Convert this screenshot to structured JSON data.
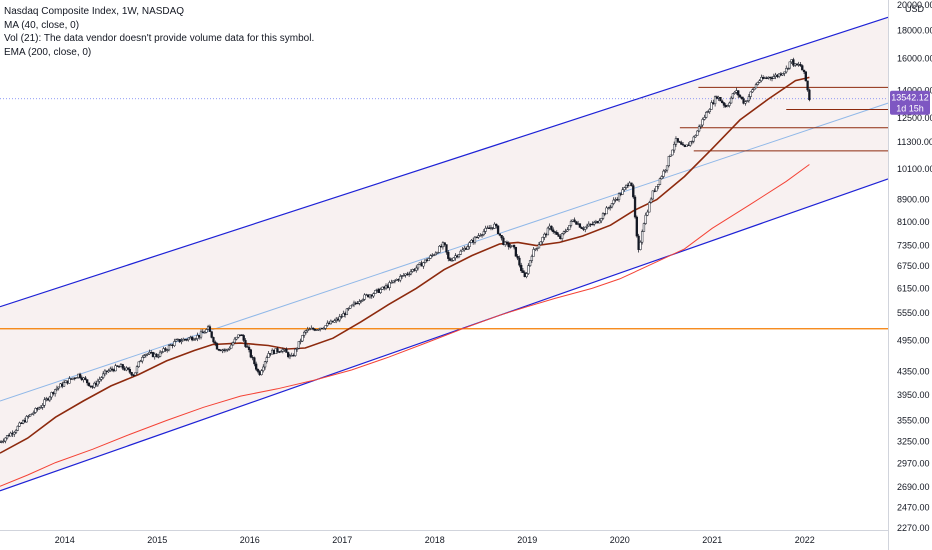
{
  "header": {
    "title": "Nasdaq Composite Index, 1W, NASDAQ",
    "indicators": [
      "MA (40, close, 0)",
      "Vol (21): The data vendor doesn't provide volume data for this symbol.",
      "EMA (200, close, 0)"
    ]
  },
  "chart_data": {
    "type": "line",
    "scale": "log",
    "ylim": [
      2270,
      20000
    ],
    "xlim": [
      2013.3,
      2022.9
    ],
    "currency_label": "USD",
    "y_ticks": [
      2270,
      2470,
      2690,
      2970,
      3250,
      3550,
      3950,
      4350,
      4950,
      5550,
      6150,
      6750,
      7350,
      8100,
      8900,
      10100,
      11300,
      12500,
      14000,
      16000,
      18000,
      20000
    ],
    "y_tick_labels": [
      "2270.00",
      "2470.00",
      "2690.00",
      "2970.00",
      "3250.00",
      "3550.00",
      "3950.00",
      "4350.00",
      "4950.00",
      "5550.00",
      "6150.00",
      "6750.00",
      "7350.00",
      "8100.00",
      "8900.00",
      "10100.00",
      "11300.00",
      "12500.00",
      "14000.00",
      "16000.00",
      "18000.00",
      "20000.00"
    ],
    "x_ticks": [
      {
        "label": "2014",
        "x": 2014.0
      },
      {
        "label": "2015",
        "x": 2015.0
      },
      {
        "label": "2016",
        "x": 2016.0
      },
      {
        "label": "2017",
        "x": 2017.0
      },
      {
        "label": "2018",
        "x": 2018.0
      },
      {
        "label": "2019",
        "x": 2019.0
      },
      {
        "label": "2020",
        "x": 2020.0
      },
      {
        "label": "2021",
        "x": 2021.0
      },
      {
        "label": "2022",
        "x": 2022.0
      }
    ],
    "last_price": {
      "value": 13542.12,
      "label": "13542.12",
      "countdown": "1d 15h",
      "color": "#7e57c2"
    },
    "series": [
      {
        "kind": "price",
        "color": "#131722",
        "points": [
          [
            2013.3,
            3250
          ],
          [
            2013.45,
            3400
          ],
          [
            2013.6,
            3600
          ],
          [
            2013.75,
            3780
          ],
          [
            2013.9,
            4050
          ],
          [
            2014.0,
            4150
          ],
          [
            2014.15,
            4300
          ],
          [
            2014.3,
            4080
          ],
          [
            2014.45,
            4350
          ],
          [
            2014.6,
            4450
          ],
          [
            2014.75,
            4300
          ],
          [
            2014.85,
            4700
          ],
          [
            2015.0,
            4650
          ],
          [
            2015.2,
            4930
          ],
          [
            2015.45,
            5050
          ],
          [
            2015.55,
            5200
          ],
          [
            2015.65,
            4800
          ],
          [
            2015.75,
            4750
          ],
          [
            2015.9,
            5100
          ],
          [
            2016.05,
            4500
          ],
          [
            2016.1,
            4300
          ],
          [
            2016.2,
            4700
          ],
          [
            2016.35,
            4780
          ],
          [
            2016.45,
            4600
          ],
          [
            2016.6,
            5150
          ],
          [
            2016.8,
            5250
          ],
          [
            2016.95,
            5400
          ],
          [
            2017.2,
            5900
          ],
          [
            2017.45,
            6150
          ],
          [
            2017.6,
            6400
          ],
          [
            2017.8,
            6700
          ],
          [
            2017.95,
            7000
          ],
          [
            2018.1,
            7400
          ],
          [
            2018.15,
            6900
          ],
          [
            2018.3,
            7200
          ],
          [
            2018.5,
            7750
          ],
          [
            2018.65,
            8000
          ],
          [
            2018.75,
            7400
          ],
          [
            2018.85,
            7300
          ],
          [
            2018.97,
            6400
          ],
          [
            2019.05,
            7100
          ],
          [
            2019.25,
            7950
          ],
          [
            2019.35,
            7550
          ],
          [
            2019.5,
            8200
          ],
          [
            2019.6,
            7900
          ],
          [
            2019.75,
            8100
          ],
          [
            2019.9,
            8700
          ],
          [
            2020.05,
            9300
          ],
          [
            2020.12,
            9700
          ],
          [
            2020.15,
            8800
          ],
          [
            2020.2,
            7100
          ],
          [
            2020.25,
            8000
          ],
          [
            2020.35,
            9100
          ],
          [
            2020.5,
            10200
          ],
          [
            2020.6,
            11400
          ],
          [
            2020.7,
            11000
          ],
          [
            2020.8,
            11500
          ],
          [
            2020.95,
            12900
          ],
          [
            2021.05,
            13700
          ],
          [
            2021.15,
            13100
          ],
          [
            2021.25,
            14000
          ],
          [
            2021.35,
            13300
          ],
          [
            2021.5,
            14600
          ],
          [
            2021.6,
            14800
          ],
          [
            2021.7,
            14900
          ],
          [
            2021.8,
            15300
          ],
          [
            2021.85,
            15900
          ],
          [
            2021.9,
            15500
          ],
          [
            2021.95,
            15600
          ],
          [
            2022.0,
            14900
          ],
          [
            2022.05,
            13542
          ]
        ]
      },
      {
        "kind": "ma",
        "name": "MA (40, close, 0)",
        "color": "#8d2a0e",
        "points": [
          [
            2013.3,
            3100
          ],
          [
            2013.6,
            3300
          ],
          [
            2013.9,
            3600
          ],
          [
            2014.2,
            3850
          ],
          [
            2014.5,
            4100
          ],
          [
            2014.8,
            4300
          ],
          [
            2015.1,
            4550
          ],
          [
            2015.4,
            4750
          ],
          [
            2015.6,
            4870
          ],
          [
            2015.9,
            4900
          ],
          [
            2016.2,
            4850
          ],
          [
            2016.4,
            4780
          ],
          [
            2016.6,
            4800
          ],
          [
            2016.9,
            5000
          ],
          [
            2017.2,
            5350
          ],
          [
            2017.5,
            5750
          ],
          [
            2017.8,
            6150
          ],
          [
            2018.1,
            6650
          ],
          [
            2018.4,
            7050
          ],
          [
            2018.7,
            7400
          ],
          [
            2018.9,
            7450
          ],
          [
            2019.1,
            7350
          ],
          [
            2019.35,
            7450
          ],
          [
            2019.6,
            7650
          ],
          [
            2019.9,
            8000
          ],
          [
            2020.15,
            8500
          ],
          [
            2020.4,
            8900
          ],
          [
            2020.7,
            9800
          ],
          [
            2021.0,
            11000
          ],
          [
            2021.3,
            12400
          ],
          [
            2021.6,
            13500
          ],
          [
            2021.9,
            14600
          ],
          [
            2022.05,
            14800
          ]
        ]
      },
      {
        "kind": "ema",
        "name": "EMA (200, close, 0)",
        "color": "#f44336",
        "points": [
          [
            2013.3,
            2700
          ],
          [
            2013.6,
            2830
          ],
          [
            2013.9,
            2980
          ],
          [
            2014.3,
            3150
          ],
          [
            2014.7,
            3350
          ],
          [
            2015.1,
            3550
          ],
          [
            2015.5,
            3750
          ],
          [
            2015.9,
            3930
          ],
          [
            2016.3,
            4050
          ],
          [
            2016.7,
            4200
          ],
          [
            2017.1,
            4380
          ],
          [
            2017.5,
            4620
          ],
          [
            2017.9,
            4900
          ],
          [
            2018.3,
            5200
          ],
          [
            2018.7,
            5500
          ],
          [
            2019.0,
            5700
          ],
          [
            2019.3,
            5900
          ],
          [
            2019.7,
            6150
          ],
          [
            2020.0,
            6400
          ],
          [
            2020.3,
            6750
          ],
          [
            2020.7,
            7250
          ],
          [
            2021.0,
            7900
          ],
          [
            2021.4,
            8700
          ],
          [
            2021.8,
            9600
          ],
          [
            2022.05,
            10300
          ]
        ]
      }
    ],
    "drawings": [
      {
        "kind": "channel-top",
        "color": "#1e22d6",
        "from": [
          2013.3,
          5700
        ],
        "to": [
          2022.9,
          19000
        ]
      },
      {
        "kind": "channel-bottom",
        "color": "#1e22d6",
        "from": [
          2013.3,
          2650
        ],
        "to": [
          2022.9,
          9700
        ]
      },
      {
        "kind": "channel-mid",
        "color": "#90b8e8",
        "from": [
          2013.3,
          3850
        ],
        "to": [
          2022.9,
          13300
        ]
      },
      {
        "kind": "hline",
        "color": "#f57c00",
        "value": 5200,
        "from_x": 2013.3,
        "to_x": 2022.9
      },
      {
        "kind": "hline",
        "color": "#8d2a0e",
        "value": 14200,
        "from_x": 2020.85,
        "to_x": 2022.9
      },
      {
        "kind": "hline",
        "color": "#8d2a0e",
        "value": 12950,
        "from_x": 2021.8,
        "to_x": 2022.9
      },
      {
        "kind": "hline",
        "color": "#8d2a0e",
        "value": 12000,
        "from_x": 2020.65,
        "to_x": 2022.9
      },
      {
        "kind": "hline",
        "color": "#8d2a0e",
        "value": 10900,
        "from_x": 2020.8,
        "to_x": 2022.9
      },
      {
        "kind": "dotted-last-price",
        "color": "#6b7bf2",
        "value": 13542.12
      }
    ],
    "channel_fill": "#f3e5e5",
    "grid": false
  }
}
